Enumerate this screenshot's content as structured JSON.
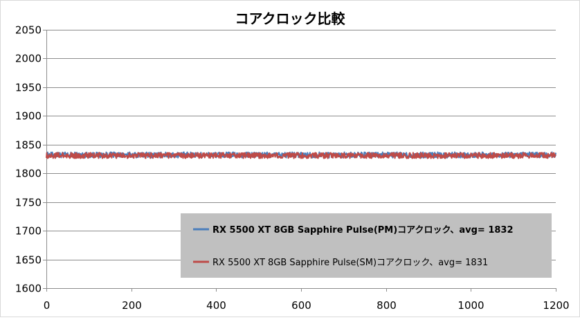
{
  "chart_data": {
    "type": "line",
    "title": "コアクロック比較",
    "xlabel": "",
    "ylabel": "",
    "xlim": [
      0,
      1200
    ],
    "ylim": [
      1600,
      2050
    ],
    "x_ticks": [
      "0",
      "200",
      "400",
      "600",
      "800",
      "1000",
      "1200"
    ],
    "y_ticks": [
      "2050",
      "2000",
      "1950",
      "1900",
      "1850",
      "1800",
      "1750",
      "1700",
      "1650",
      "1600"
    ],
    "x_tick_values": [
      0,
      200,
      400,
      600,
      800,
      1000,
      1200
    ],
    "y_tick_values": [
      2050,
      2000,
      1950,
      1900,
      1850,
      1800,
      1750,
      1700,
      1650,
      1600
    ],
    "grid": true,
    "legend_position": "bottom-right",
    "series": [
      {
        "name": "RX 5500 XT 8GB Sapphire Pulse(PM)コアクロック、avg= 1832",
        "color": "#4a7ebb",
        "mean": 1832,
        "noise_amplitude": 5,
        "n_points": 1200
      },
      {
        "name": "RX 5500 XT 8GB Sapphire Pulse(SM)コアクロック、avg= 1831",
        "color": "#be4b48",
        "mean": 1831,
        "noise_amplitude": 5,
        "n_points": 1200
      }
    ]
  }
}
